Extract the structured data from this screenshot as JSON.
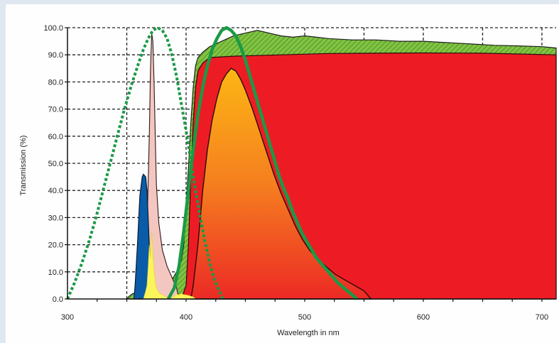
{
  "chart_data": {
    "type": "area",
    "title": "",
    "xlabel": "Wavelength in nm",
    "ylabel": "Transmission (%)",
    "xlim": [
      300,
      712
    ],
    "ylim": [
      0,
      100
    ],
    "grid": true,
    "x_ticks": [
      300,
      400,
      500,
      600,
      700
    ],
    "x_tick_labels": [
      "300",
      "400",
      "500",
      "600",
      "700"
    ],
    "y_ticks": [
      0,
      10,
      20,
      30,
      40,
      50,
      60,
      70,
      80,
      90,
      100
    ],
    "y_tick_labels": [
      "0.0",
      "10.0",
      "20.0",
      "30.0",
      "40.0",
      "50.0",
      "60.0",
      "70.0",
      "80.0",
      "90.0",
      "100.0"
    ],
    "colors": {
      "red_filter": "#ed1c24",
      "green_hatched": "#7dc242",
      "green_line": "#1a9a46",
      "blue_peak": "#0a5ca8",
      "pink_peak": "#f4c6c0",
      "yellow_emission": "#fbf55c",
      "orange_top": "#fbb414",
      "orange_bottom": "#ee3a24"
    },
    "series": [
      {
        "style": "red-area",
        "points": [
          [
            396,
            0
          ],
          [
            400,
            5
          ],
          [
            402,
            20
          ],
          [
            404,
            45
          ],
          [
            406,
            65
          ],
          [
            408,
            78
          ],
          [
            410,
            84
          ],
          [
            414,
            87
          ],
          [
            420,
            89
          ],
          [
            440,
            89.5
          ],
          [
            480,
            90
          ],
          [
            520,
            90.5
          ],
          [
            600,
            90.7
          ],
          [
            650,
            90.6
          ],
          [
            712,
            90
          ]
        ]
      },
      {
        "style": "green-hatched-area",
        "points": [
          [
            350,
            0
          ],
          [
            352,
            1
          ],
          [
            355,
            2
          ],
          [
            360,
            2.2
          ],
          [
            370,
            3
          ],
          [
            380,
            4
          ],
          [
            384,
            5
          ],
          [
            388,
            7
          ],
          [
            392,
            10
          ],
          [
            396,
            14
          ],
          [
            398,
            20
          ],
          [
            400,
            35
          ],
          [
            402,
            48
          ],
          [
            404,
            65
          ],
          [
            406,
            78
          ],
          [
            408,
            86
          ],
          [
            410,
            89
          ],
          [
            414,
            91
          ],
          [
            420,
            93
          ],
          [
            430,
            95
          ],
          [
            440,
            97
          ],
          [
            450,
            98
          ],
          [
            460,
            99
          ],
          [
            470,
            98
          ],
          [
            480,
            97
          ],
          [
            490,
            96.5
          ],
          [
            500,
            97
          ],
          [
            510,
            96.5
          ],
          [
            520,
            96
          ],
          [
            540,
            95.5
          ],
          [
            560,
            95.5
          ],
          [
            580,
            95
          ],
          [
            600,
            95
          ],
          [
            620,
            94.5
          ],
          [
            640,
            94
          ],
          [
            660,
            93.5
          ],
          [
            680,
            93.3
          ],
          [
            700,
            93
          ],
          [
            712,
            92.5
          ]
        ]
      },
      {
        "style": "orange-gradient-area",
        "points": [
          [
            404,
            0
          ],
          [
            406,
            5
          ],
          [
            410,
            20
          ],
          [
            414,
            40
          ],
          [
            418,
            55
          ],
          [
            422,
            66
          ],
          [
            426,
            74
          ],
          [
            430,
            80
          ],
          [
            434,
            83
          ],
          [
            438,
            85
          ],
          [
            442,
            84
          ],
          [
            446,
            81
          ],
          [
            450,
            77
          ],
          [
            456,
            70
          ],
          [
            462,
            62
          ],
          [
            468,
            54
          ],
          [
            474,
            46
          ],
          [
            480,
            39
          ],
          [
            486,
            33
          ],
          [
            492,
            27
          ],
          [
            498,
            22
          ],
          [
            504,
            18
          ],
          [
            510,
            15
          ],
          [
            518,
            12
          ],
          [
            526,
            9
          ],
          [
            534,
            7
          ],
          [
            542,
            5
          ],
          [
            550,
            3
          ],
          [
            556,
            0
          ]
        ]
      },
      {
        "style": "pink-peak",
        "points": [
          [
            365,
            0
          ],
          [
            367,
            25
          ],
          [
            369,
            60
          ],
          [
            370,
            85
          ],
          [
            371,
            98
          ],
          [
            372,
            95
          ],
          [
            373,
            80
          ],
          [
            374,
            60
          ],
          [
            375,
            42
          ],
          [
            377,
            28
          ],
          [
            380,
            18
          ],
          [
            384,
            12
          ],
          [
            388,
            8
          ],
          [
            392,
            4
          ],
          [
            394,
            0
          ]
        ]
      },
      {
        "style": "blue-peak",
        "points": [
          [
            356,
            0
          ],
          [
            357,
            5
          ],
          [
            359,
            20
          ],
          [
            361,
            38
          ],
          [
            363,
            45
          ],
          [
            364,
            46
          ],
          [
            366,
            45
          ],
          [
            367,
            40
          ],
          [
            368,
            30
          ],
          [
            369,
            20
          ],
          [
            370,
            12
          ],
          [
            371,
            6
          ],
          [
            372,
            0
          ]
        ]
      },
      {
        "style": "yellow-emission",
        "points": [
          [
            364,
            0
          ],
          [
            366,
            3
          ],
          [
            367,
            5
          ],
          [
            368,
            12
          ],
          [
            369,
            20
          ],
          [
            370,
            15
          ],
          [
            371,
            25
          ],
          [
            372,
            16
          ],
          [
            373,
            10
          ],
          [
            374,
            6
          ],
          [
            375,
            4
          ],
          [
            376,
            3
          ],
          [
            378,
            2
          ],
          [
            380,
            1.5
          ],
          [
            382,
            1
          ],
          [
            384,
            0.5
          ],
          [
            386,
            0
          ],
          [
            388,
            0.5
          ],
          [
            390,
            1
          ],
          [
            392,
            1.8
          ],
          [
            394,
            1.5
          ],
          [
            396,
            2
          ],
          [
            398,
            1.6
          ],
          [
            400,
            1.5
          ],
          [
            402,
            1.3
          ],
          [
            404,
            1
          ],
          [
            406,
            0.8
          ],
          [
            408,
            0
          ]
        ]
      },
      {
        "style": "green-solid-line",
        "points": [
          [
            385,
            0
          ],
          [
            390,
            4
          ],
          [
            394,
            12
          ],
          [
            398,
            25
          ],
          [
            402,
            40
          ],
          [
            406,
            55
          ],
          [
            410,
            68
          ],
          [
            414,
            78
          ],
          [
            418,
            86
          ],
          [
            422,
            92
          ],
          [
            426,
            96
          ],
          [
            430,
            99
          ],
          [
            434,
            100
          ],
          [
            438,
            99
          ],
          [
            442,
            97
          ],
          [
            446,
            93
          ],
          [
            450,
            88
          ],
          [
            454,
            82
          ],
          [
            458,
            76
          ],
          [
            462,
            70
          ],
          [
            466,
            64
          ],
          [
            470,
            58
          ],
          [
            474,
            52
          ],
          [
            478,
            46
          ],
          [
            482,
            41
          ],
          [
            486,
            37
          ],
          [
            490,
            32
          ],
          [
            494,
            28
          ],
          [
            498,
            24
          ],
          [
            502,
            21
          ],
          [
            506,
            18
          ],
          [
            510,
            15
          ],
          [
            516,
            12
          ],
          [
            522,
            9
          ],
          [
            528,
            6
          ],
          [
            536,
            3
          ],
          [
            544,
            0
          ]
        ]
      },
      {
        "style": "green-dotted-line",
        "points": [
          [
            300,
            0
          ],
          [
            306,
            6
          ],
          [
            312,
            13
          ],
          [
            318,
            21
          ],
          [
            324,
            30
          ],
          [
            330,
            40
          ],
          [
            336,
            50
          ],
          [
            342,
            60
          ],
          [
            348,
            70
          ],
          [
            354,
            79
          ],
          [
            360,
            87
          ],
          [
            364,
            92
          ],
          [
            368,
            96
          ],
          [
            372,
            99
          ],
          [
            376,
            100
          ],
          [
            380,
            99
          ],
          [
            384,
            96
          ],
          [
            388,
            90
          ],
          [
            392,
            82
          ],
          [
            396,
            72
          ],
          [
            400,
            62
          ],
          [
            404,
            51
          ],
          [
            408,
            40
          ],
          [
            412,
            30
          ],
          [
            416,
            21
          ],
          [
            420,
            13
          ],
          [
            424,
            7
          ],
          [
            428,
            3
          ],
          [
            431,
            0
          ]
        ]
      }
    ]
  }
}
